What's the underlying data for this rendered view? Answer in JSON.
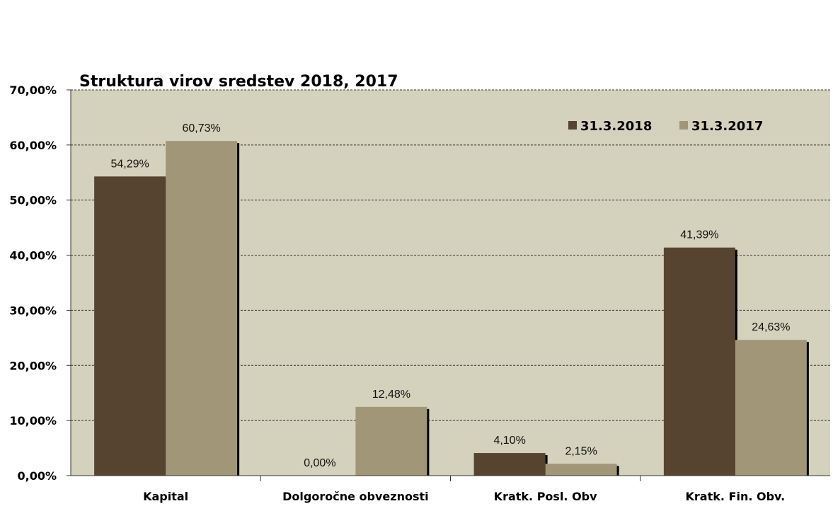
{
  "chart_data": {
    "type": "bar",
    "title": "Struktura virov sredstev 2018, 2017",
    "categories": [
      "Kapital",
      "Dolgoročne obveznosti",
      "Kratk. Posl. Obv",
      "Kratk. Fin. Obv."
    ],
    "series": [
      {
        "name": "31.3.2018",
        "values": [
          54.29,
          0.0,
          4.1,
          41.39
        ],
        "labels": [
          "54,29%",
          "0,00%",
          "4,10%",
          "41,39%"
        ],
        "color": "#564431"
      },
      {
        "name": "31.3.2017",
        "values": [
          60.73,
          12.48,
          2.15,
          24.63
        ],
        "labels": [
          "60,73%",
          "12,48%",
          "2,15%",
          "24,63%"
        ],
        "color": "#a29679"
      }
    ],
    "yticks": [
      "0,00%",
      "10,00%",
      "20,00%",
      "30,00%",
      "40,00%",
      "50,00%",
      "60,00%",
      "70,00%"
    ],
    "ylim": [
      0,
      70
    ],
    "grid": true,
    "legend_position": "top-right",
    "plot_background": "#d4d2bc",
    "shadow_color": "#000000"
  }
}
